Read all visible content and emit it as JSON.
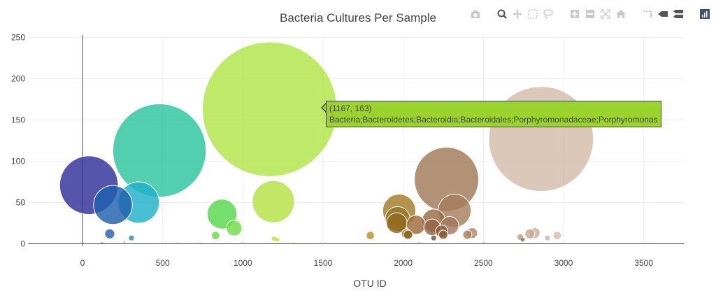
{
  "colors": {
    "tooltip_bg": "#9ad32b",
    "grid": "#eeeeee",
    "axis_line": "#444444"
  },
  "modebar": [
    {
      "name": "camera-icon",
      "label": "Download plot as a png"
    },
    {
      "name": "zoom-icon",
      "label": "Zoom"
    },
    {
      "name": "pan-icon",
      "label": "Pan"
    },
    {
      "name": "box-select-icon",
      "label": "Box Select"
    },
    {
      "name": "lasso-select-icon",
      "label": "Lasso Select"
    },
    {
      "name": "zoom-in-icon",
      "label": "Zoom in"
    },
    {
      "name": "zoom-out-icon",
      "label": "Zoom out"
    },
    {
      "name": "autoscale-icon",
      "label": "Autoscale"
    },
    {
      "name": "reset-axes-icon",
      "label": "Reset axes"
    },
    {
      "name": "spike-lines-icon",
      "label": "Toggle Spike Lines"
    },
    {
      "name": "hover-closest-icon",
      "label": "Show closest data on hover"
    },
    {
      "name": "hover-compare-icon",
      "label": "Compare data on hover"
    },
    {
      "name": "plotly-logo-icon",
      "label": "Produced with Plotly"
    }
  ],
  "tooltip": {
    "line1": "(1167, 163)",
    "line2": "Bacteria;Bacteroidetes;Bacteroidia;Bacteroidales;Porphyromonadaceae;Porphyromonas"
  },
  "chart_data": {
    "type": "scatter",
    "title": "Bacteria Cultures Per Sample",
    "xlabel": "OTU ID",
    "ylabel": "",
    "xlim": [
      -340,
      3750
    ],
    "ylim": [
      -3,
      253
    ],
    "xticks": [
      0,
      500,
      1000,
      1500,
      2000,
      2500,
      3000,
      3500
    ],
    "yticks": [
      0,
      50,
      100,
      150,
      200,
      250
    ],
    "grid": true,
    "points": [
      {
        "x": 40,
        "y": 71,
        "size": 71,
        "color": "#2f2f9a"
      },
      {
        "x": 190,
        "y": 47,
        "size": 47,
        "color": "#1f60ac"
      },
      {
        "x": 170,
        "y": 12,
        "size": 12,
        "color": "#2a5fae"
      },
      {
        "x": 350,
        "y": 50,
        "size": 50,
        "color": "#1fb0c8"
      },
      {
        "x": 305,
        "y": 7,
        "size": 7,
        "color": "#2d86c3"
      },
      {
        "x": 480,
        "y": 113,
        "size": 113,
        "color": "#2cc59e"
      },
      {
        "x": 870,
        "y": 36,
        "size": 36,
        "color": "#56d84a"
      },
      {
        "x": 945,
        "y": 19,
        "size": 19,
        "color": "#70dc48"
      },
      {
        "x": 830,
        "y": 10,
        "size": 10,
        "color": "#6ad84a"
      },
      {
        "x": 1167,
        "y": 163,
        "size": 163,
        "color": "#b0e448"
      },
      {
        "x": 1190,
        "y": 51,
        "size": 51,
        "color": "#b4e246"
      },
      {
        "x": 1195,
        "y": 6,
        "size": 6,
        "color": "#c2e040"
      },
      {
        "x": 1215,
        "y": 5,
        "size": 5,
        "color": "#c8de40"
      },
      {
        "x": 1795,
        "y": 10,
        "size": 10,
        "color": "#b89030"
      },
      {
        "x": 1975,
        "y": 40,
        "size": 40,
        "color": "#a27b2a"
      },
      {
        "x": 1965,
        "y": 30,
        "size": 30,
        "color": "#9b7424"
      },
      {
        "x": 1960,
        "y": 25,
        "size": 25,
        "color": "#8f6a1e"
      },
      {
        "x": 2080,
        "y": 23,
        "size": 23,
        "color": "#9c6a3a"
      },
      {
        "x": 2030,
        "y": 11,
        "size": 11,
        "color": "#8a6218"
      },
      {
        "x": 2020,
        "y": 12,
        "size": 12,
        "color": "#9a7426"
      },
      {
        "x": 2190,
        "y": 28,
        "size": 28,
        "color": "#9a6a44"
      },
      {
        "x": 2180,
        "y": 20,
        "size": 20,
        "color": "#956442"
      },
      {
        "x": 2240,
        "y": 15,
        "size": 15,
        "color": "#8e5e3a"
      },
      {
        "x": 2250,
        "y": 11,
        "size": 11,
        "color": "#8a5a32"
      },
      {
        "x": 2270,
        "y": 78,
        "size": 78,
        "color": "#a07a58"
      },
      {
        "x": 2320,
        "y": 40,
        "size": 40,
        "color": "#a67e5e"
      },
      {
        "x": 2290,
        "y": 22,
        "size": 22,
        "color": "#a4785a"
      },
      {
        "x": 2400,
        "y": 11,
        "size": 11,
        "color": "#ae8060"
      },
      {
        "x": 2430,
        "y": 13,
        "size": 13,
        "color": "#b08866"
      },
      {
        "x": 2190,
        "y": 7,
        "size": 7,
        "color": "#7e5034"
      },
      {
        "x": 2730,
        "y": 8,
        "size": 8,
        "color": "#c49a86"
      },
      {
        "x": 2790,
        "y": 12,
        "size": 12,
        "color": "#c8a896"
      },
      {
        "x": 2820,
        "y": 13,
        "size": 13,
        "color": "#ccae9c"
      },
      {
        "x": 2860,
        "y": 127,
        "size": 127,
        "color": "#d4bcaa"
      },
      {
        "x": 2900,
        "y": 7,
        "size": 7,
        "color": "#d0b8a6"
      },
      {
        "x": 2960,
        "y": 10,
        "size": 10,
        "color": "#d6c0b0"
      },
      {
        "x": 2745,
        "y": 5,
        "size": 5,
        "color": "#9a6448"
      },
      {
        "x": 120,
        "y": 1,
        "size": 1,
        "color": "#2c4da6"
      },
      {
        "x": 260,
        "y": 2,
        "size": 2,
        "color": "#2aa0c6"
      },
      {
        "x": 600,
        "y": 1,
        "size": 1,
        "color": "#4ad0a0"
      },
      {
        "x": 720,
        "y": 1,
        "size": 1,
        "color": "#5ad270"
      },
      {
        "x": 1000,
        "y": 1,
        "size": 1,
        "color": "#8ad850"
      },
      {
        "x": 1300,
        "y": 1,
        "size": 1,
        "color": "#d0de40"
      },
      {
        "x": 1500,
        "y": 1,
        "size": 1,
        "color": "#dad840"
      },
      {
        "x": 2100,
        "y": 1,
        "size": 1,
        "color": "#9a6a2a"
      },
      {
        "x": 2500,
        "y": 1,
        "size": 1,
        "color": "#b08a70"
      },
      {
        "x": 3000,
        "y": 1,
        "size": 1,
        "color": "#d6c2b4"
      }
    ]
  }
}
